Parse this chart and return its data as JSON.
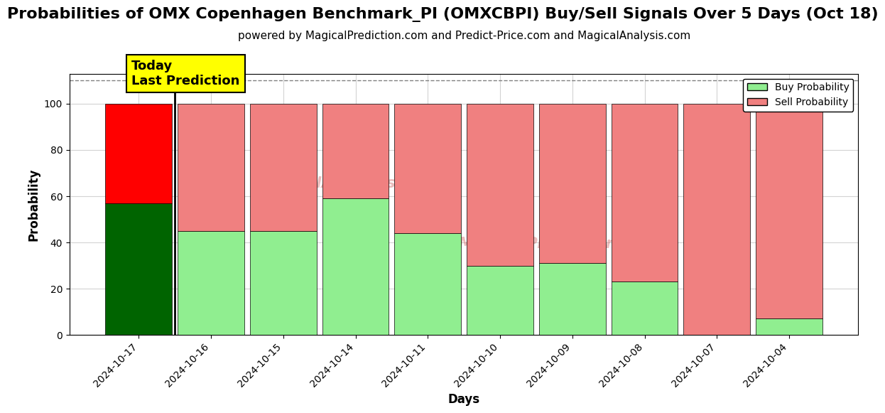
{
  "title": "Probabilities of OMX Copenhagen Benchmark_PI (OMXCBPI) Buy/Sell Signals Over 5 Days (Oct 18)",
  "subtitle": "powered by MagicalPrediction.com and Predict-Price.com and MagicalAnalysis.com",
  "xlabel": "Days",
  "ylabel": "Probability",
  "dates": [
    "2024-10-17",
    "2024-10-16",
    "2024-10-15",
    "2024-10-14",
    "2024-10-11",
    "2024-10-10",
    "2024-10-09",
    "2024-10-08",
    "2024-10-07",
    "2024-10-04"
  ],
  "buy_values": [
    57,
    45,
    45,
    59,
    44,
    30,
    31,
    23,
    0,
    7
  ],
  "sell_values": [
    43,
    55,
    55,
    41,
    56,
    70,
    69,
    77,
    100,
    93
  ],
  "today_buy_color": "#006400",
  "today_sell_color": "#FF0000",
  "buy_color": "#90EE90",
  "sell_color": "#F08080",
  "today_label_bg": "#FFFF00",
  "today_annotation": "Today\nLast Prediction",
  "ylim": [
    0,
    113
  ],
  "dashed_line_y": 110,
  "legend_buy": "Buy Probability",
  "legend_sell": "Sell Probability",
  "title_fontsize": 16,
  "subtitle_fontsize": 11,
  "label_fontsize": 12,
  "tick_fontsize": 10,
  "bar_width": 0.92,
  "watermark1": "MagicalAnalysis.com",
  "watermark2": "MagicalPrediction.com"
}
